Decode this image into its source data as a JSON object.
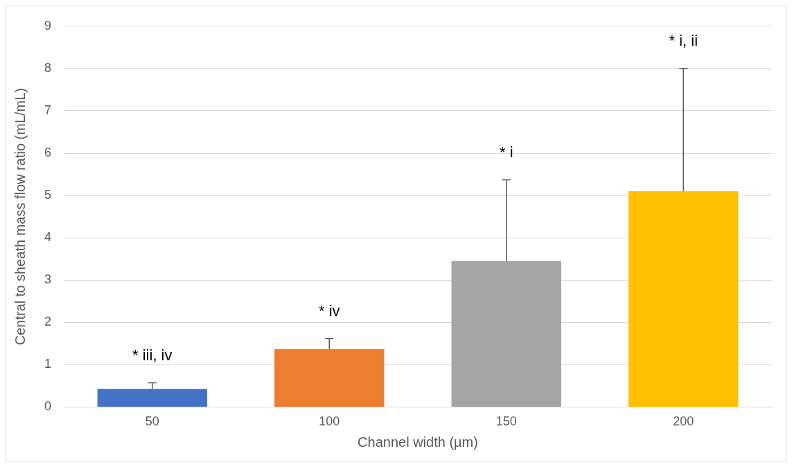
{
  "chart_data": {
    "type": "bar",
    "xlabel": "Channel width (µm)",
    "ylabel": "Central to sheath mass flow ratio (mL/mL)",
    "categories": [
      "50",
      "100",
      "150",
      "200"
    ],
    "values": [
      0.43,
      1.37,
      3.45,
      5.1
    ],
    "colors": [
      "#4472c4",
      "#ed7d31",
      "#a5a5a5",
      "#ffc000"
    ],
    "errors": [
      [
        0.43,
        0.57
      ],
      [
        1.37,
        1.62
      ],
      [
        3.45,
        5.37
      ],
      [
        5.1,
        8.0
      ]
    ],
    "ylim": [
      0,
      9
    ],
    "yticks": [
      0,
      1,
      2,
      3,
      4,
      5,
      6,
      7,
      8,
      9
    ],
    "grid": "y",
    "annotations": [
      "* iii, iv",
      "* iv",
      "* i",
      "* i, ii"
    ]
  }
}
